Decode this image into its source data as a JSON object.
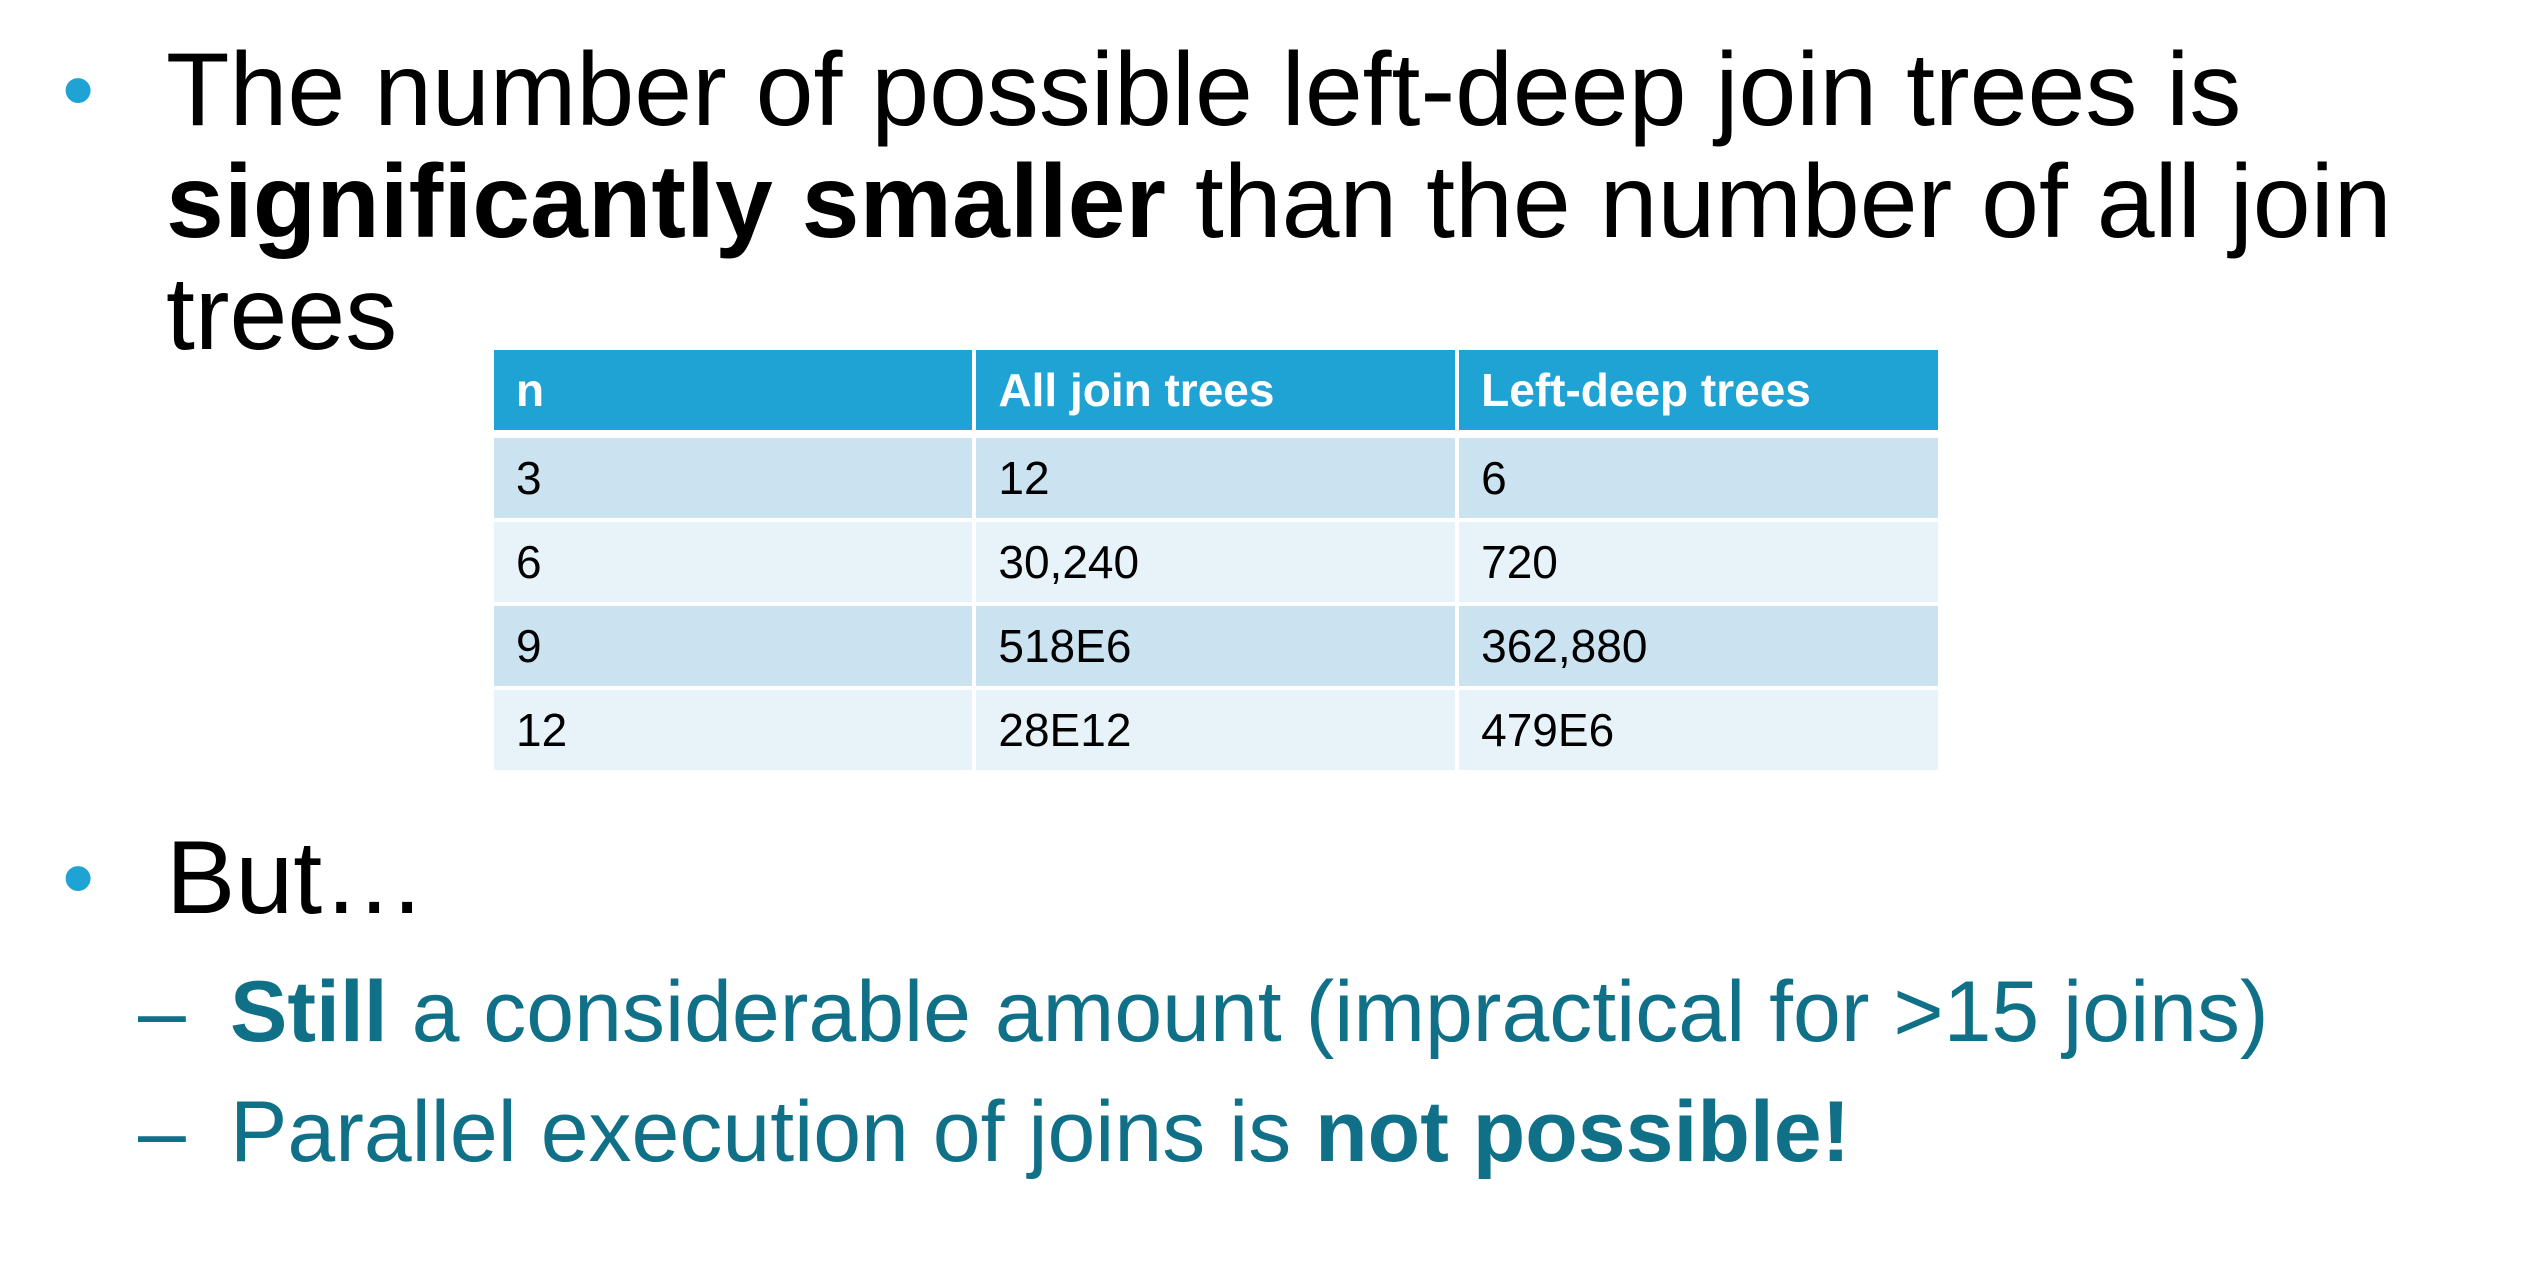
{
  "bullet1": {
    "marker": "•",
    "part1": "The number of possible left-deep join trees is ",
    "bold": "significantly smaller",
    "part2": " than the number of all join trees"
  },
  "table": {
    "headers": [
      "n",
      "All join trees",
      "Left-deep trees"
    ],
    "rows": [
      [
        "3",
        "12",
        "6"
      ],
      [
        "6",
        "30,240",
        "720"
      ],
      [
        "9",
        "518E6",
        "362,880"
      ],
      [
        "12",
        "28E12",
        "479E6"
      ]
    ]
  },
  "bullet2": {
    "marker": "•",
    "text": "But…"
  },
  "sub1": {
    "marker": "–",
    "bold": "Still",
    "rest": " a considerable amount (impractical for >15 joins)"
  },
  "sub2": {
    "marker": "–",
    "rest": "Parallel execution of joins is ",
    "bold": "not possible!"
  },
  "colors": {
    "bullet": "#1fa3d5",
    "table_header": "#1fa3d5",
    "row_odd": "#cbe2f0",
    "row_even": "#e7f2f9",
    "sub_text": "#0f7088"
  }
}
